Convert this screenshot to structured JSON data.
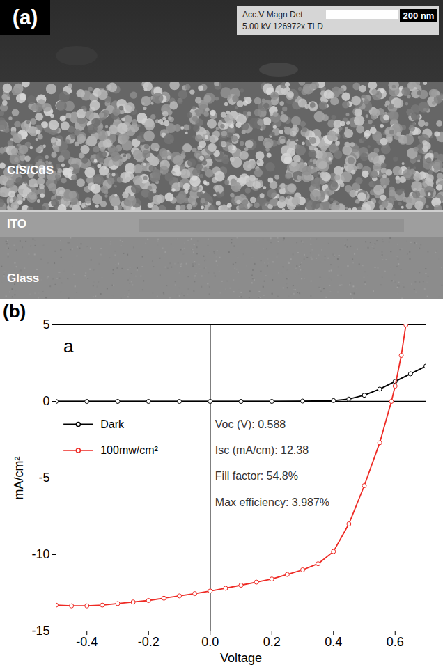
{
  "panel_a": {
    "label": "(a)",
    "info_line1": "Acc.V Magn Det",
    "info_line2": "5.00 kV 126972x TLD",
    "scale_bar": "200 nm",
    "layers": [
      "CIS/CdS",
      "ITO",
      "Glass"
    ]
  },
  "chart_data": {
    "type": "line",
    "panel_label": "(b)",
    "title": "a",
    "x_label": "Voltage",
    "y_label": "mA/cm²",
    "xlim": [
      -0.5,
      0.7
    ],
    "xticks": [
      -0.4,
      -0.2,
      {
        "value": 0,
        "label": "0.0"
      },
      0.2,
      0.4,
      0.6
    ],
    "ylim": [
      -15,
      5
    ],
    "yticks": [
      -15,
      -10,
      -5,
      0,
      5
    ],
    "legend": "left",
    "grid": false,
    "annotations": [
      "Voc (V): 0.588",
      "Isc (mA/cm): 12.38",
      "Fill factor: 54.8%",
      "Max efficiency: 3.987%"
    ],
    "series": [
      {
        "name": "Dark",
        "color": "#000000",
        "marker": "circle",
        "line_style": "solid",
        "x": [
          -0.5,
          -0.4,
          -0.3,
          -0.2,
          -0.1,
          0,
          0.1,
          0.2,
          0.3,
          0.4,
          0.45,
          0.5,
          0.55,
          0.6,
          0.65,
          0.7
        ],
        "values": [
          0,
          0,
          0,
          0,
          0,
          0,
          0,
          0,
          0.02,
          0.05,
          0.15,
          0.4,
          0.8,
          1.3,
          1.8,
          2.3
        ]
      },
      {
        "name": "100mw/cm²",
        "color": "#ee2a24",
        "marker": "circle",
        "line_style": "solid",
        "x": [
          -0.5,
          -0.45,
          -0.4,
          -0.35,
          -0.3,
          -0.25,
          -0.2,
          -0.15,
          -0.1,
          -0.05,
          0,
          0.05,
          0.1,
          0.15,
          0.2,
          0.25,
          0.3,
          0.35,
          0.4,
          0.45,
          0.5,
          0.55,
          0.588,
          0.6,
          0.62,
          0.635
        ],
        "values": [
          -13.3,
          -13.35,
          -13.35,
          -13.3,
          -13.2,
          -13.1,
          -13.0,
          -12.85,
          -12.7,
          -12.55,
          -12.38,
          -12.2,
          -12.0,
          -11.8,
          -11.6,
          -11.3,
          -11.0,
          -10.6,
          -9.8,
          -8.0,
          -5.5,
          -2.7,
          0,
          1.0,
          3.0,
          5.0
        ]
      }
    ]
  }
}
